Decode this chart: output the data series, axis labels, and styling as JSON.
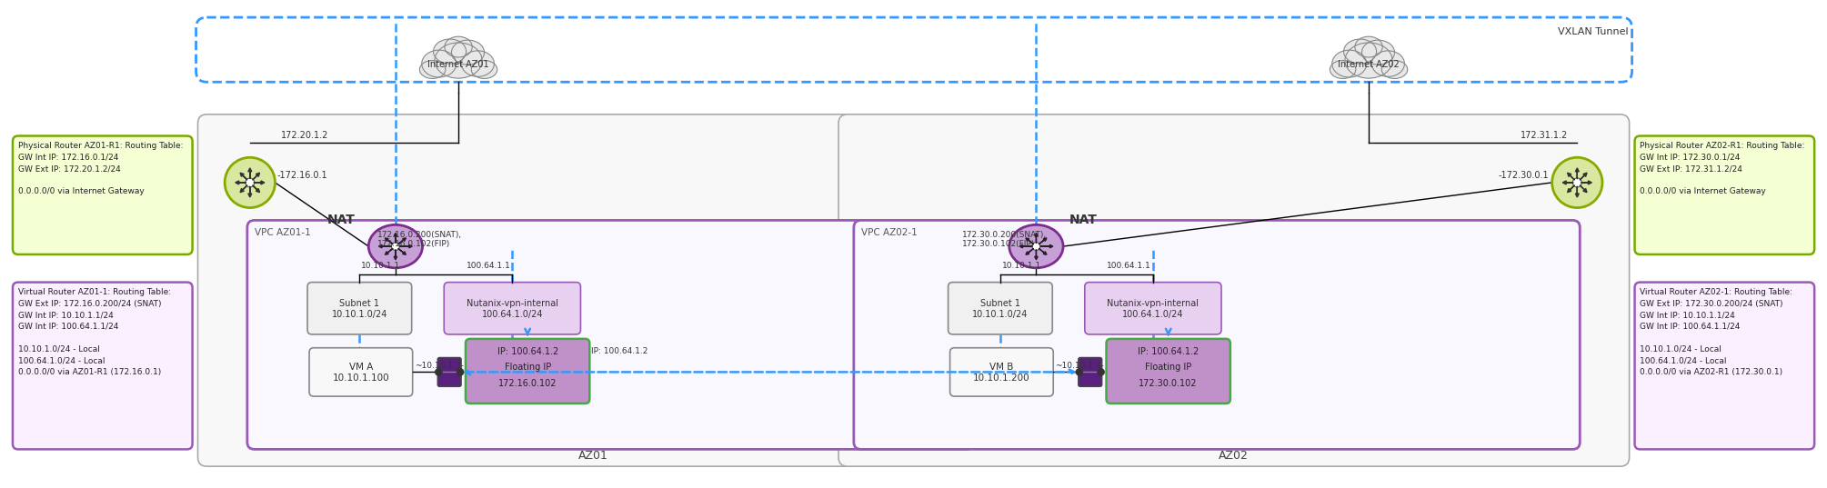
{
  "bg_color": "#ffffff",
  "vxlan_tunnel_label": "VXLAN Tunnel",
  "az01_label": "AZ01",
  "az02_label": "AZ02",
  "vpc_az01_label": "VPC AZ01-1",
  "vpc_az02_label": "VPC AZ02-1",
  "internet_az01_label": "Internet AZ01",
  "internet_az02_label": "Internet AZ02",
  "nat_label": "NAT",
  "phys_router_az01_text": "Physical Router AZ01-R1: Routing Table:\nGW Int IP: 172.16.0.1/24\nGW Ext IP: 172.20.1.2/24\n\n0.0.0.0/0 via Internet Gateway",
  "phys_router_az02_text": "Physical Router AZ02-R1: Routing Table:\nGW Int IP: 172.30.0.1/24\nGW Ext IP: 172.31.1.2/24\n\n0.0.0.0/0 via Internet Gateway",
  "virt_router_az01_text": "Virtual Router AZ01-1: Routing Table:\nGW Ext IP: 172.16.0.200/24 (SNAT)\nGW Int IP: 10.10.1.1/24\nGW Int IP: 100.64.1.1/24\n\n10.10.1.0/24 - Local\n100.64.1.0/24 - Local\n0.0.0.0/0 via AZ01-R1 (172.16.0.1)",
  "virt_router_az02_text": "Virtual Router AZ02-1: Routing Table:\nGW Ext IP: 172.30.0.200/24 (SNAT)\nGW Int IP: 10.10.1.1/24\nGW Int IP: 100.64.1.1/24\n\n10.10.1.0/24 - Local\n100.64.1.0/24 - Local\n0.0.0.0/0 via AZ02-R1 (172.30.0.1)",
  "subnet1_az01_label": "Subnet 1\n10.10.1.0/24",
  "subnet1_az02_label": "Subnet 1\n10.10.1.0/24",
  "nutanix_vpn_az01_label": "Nutanix-vpn-internal\n100.64.1.0/24",
  "nutanix_vpn_az02_label": "Nutanix-vpn-internal\n100.64.1.0/24",
  "vm_a_label": "VM A\n10.10.1.100",
  "vm_b_label": "VM B\n10.10.1.200",
  "floating_ip_az01_label": "IP: 100.64.1.2\nFloating IP\n172.16.0.102",
  "floating_ip_az02_label": "IP: 100.64.1.2\nFloating IP\n172.30.0.102",
  "nat_az01_detail": "172.16.0.200(SNAT),\n172.16.0.102(FIP)",
  "nat_az02_detail": "172.30.0.200(SNAT),\n172.30.0.102(FIP)",
  "ip_172_20_1_2": "172.20.1.2",
  "ip_172_16_0_1": "-172.16.0.1",
  "ip_172_30_0_1": "-172.30.0.1",
  "ip_172_31_1_2": "172.31.1.2",
  "ip_10_10_1_1_az01": "10.10.1.1",
  "ip_100_64_1_1_az01": "100.64.1.1",
  "ip_10_10_1_1_az02": "10.10.1.1",
  "ip_100_64_1_1_az02": "100.64.1.1",
  "ip_10_10_1_3": "~10.10.1.3-",
  "ip_10_10_1_4": "~10.10.1.4-",
  "color_green_outline": "#77aa00",
  "color_purple_box": "#9B59B6",
  "color_blue_dashed": "#3399FF",
  "color_gray_az": "#aaaaaa",
  "color_gray_subnet": "#999999",
  "color_green_router_fill": "#d8e8a0",
  "color_green_router_edge": "#88aa00",
  "color_purple_vr_fill": "#c8a0d8",
  "color_purple_vr_edge": "#7B2D8B",
  "color_subnet_fill": "#f0f0f0",
  "color_nutanix_fill": "#e8d0f0",
  "color_floating_fill": "#c090c8",
  "color_floating_edge": "#44aa44",
  "color_vm_fill": "#f8f8f8",
  "color_vpc_fill": "#faf8ff"
}
